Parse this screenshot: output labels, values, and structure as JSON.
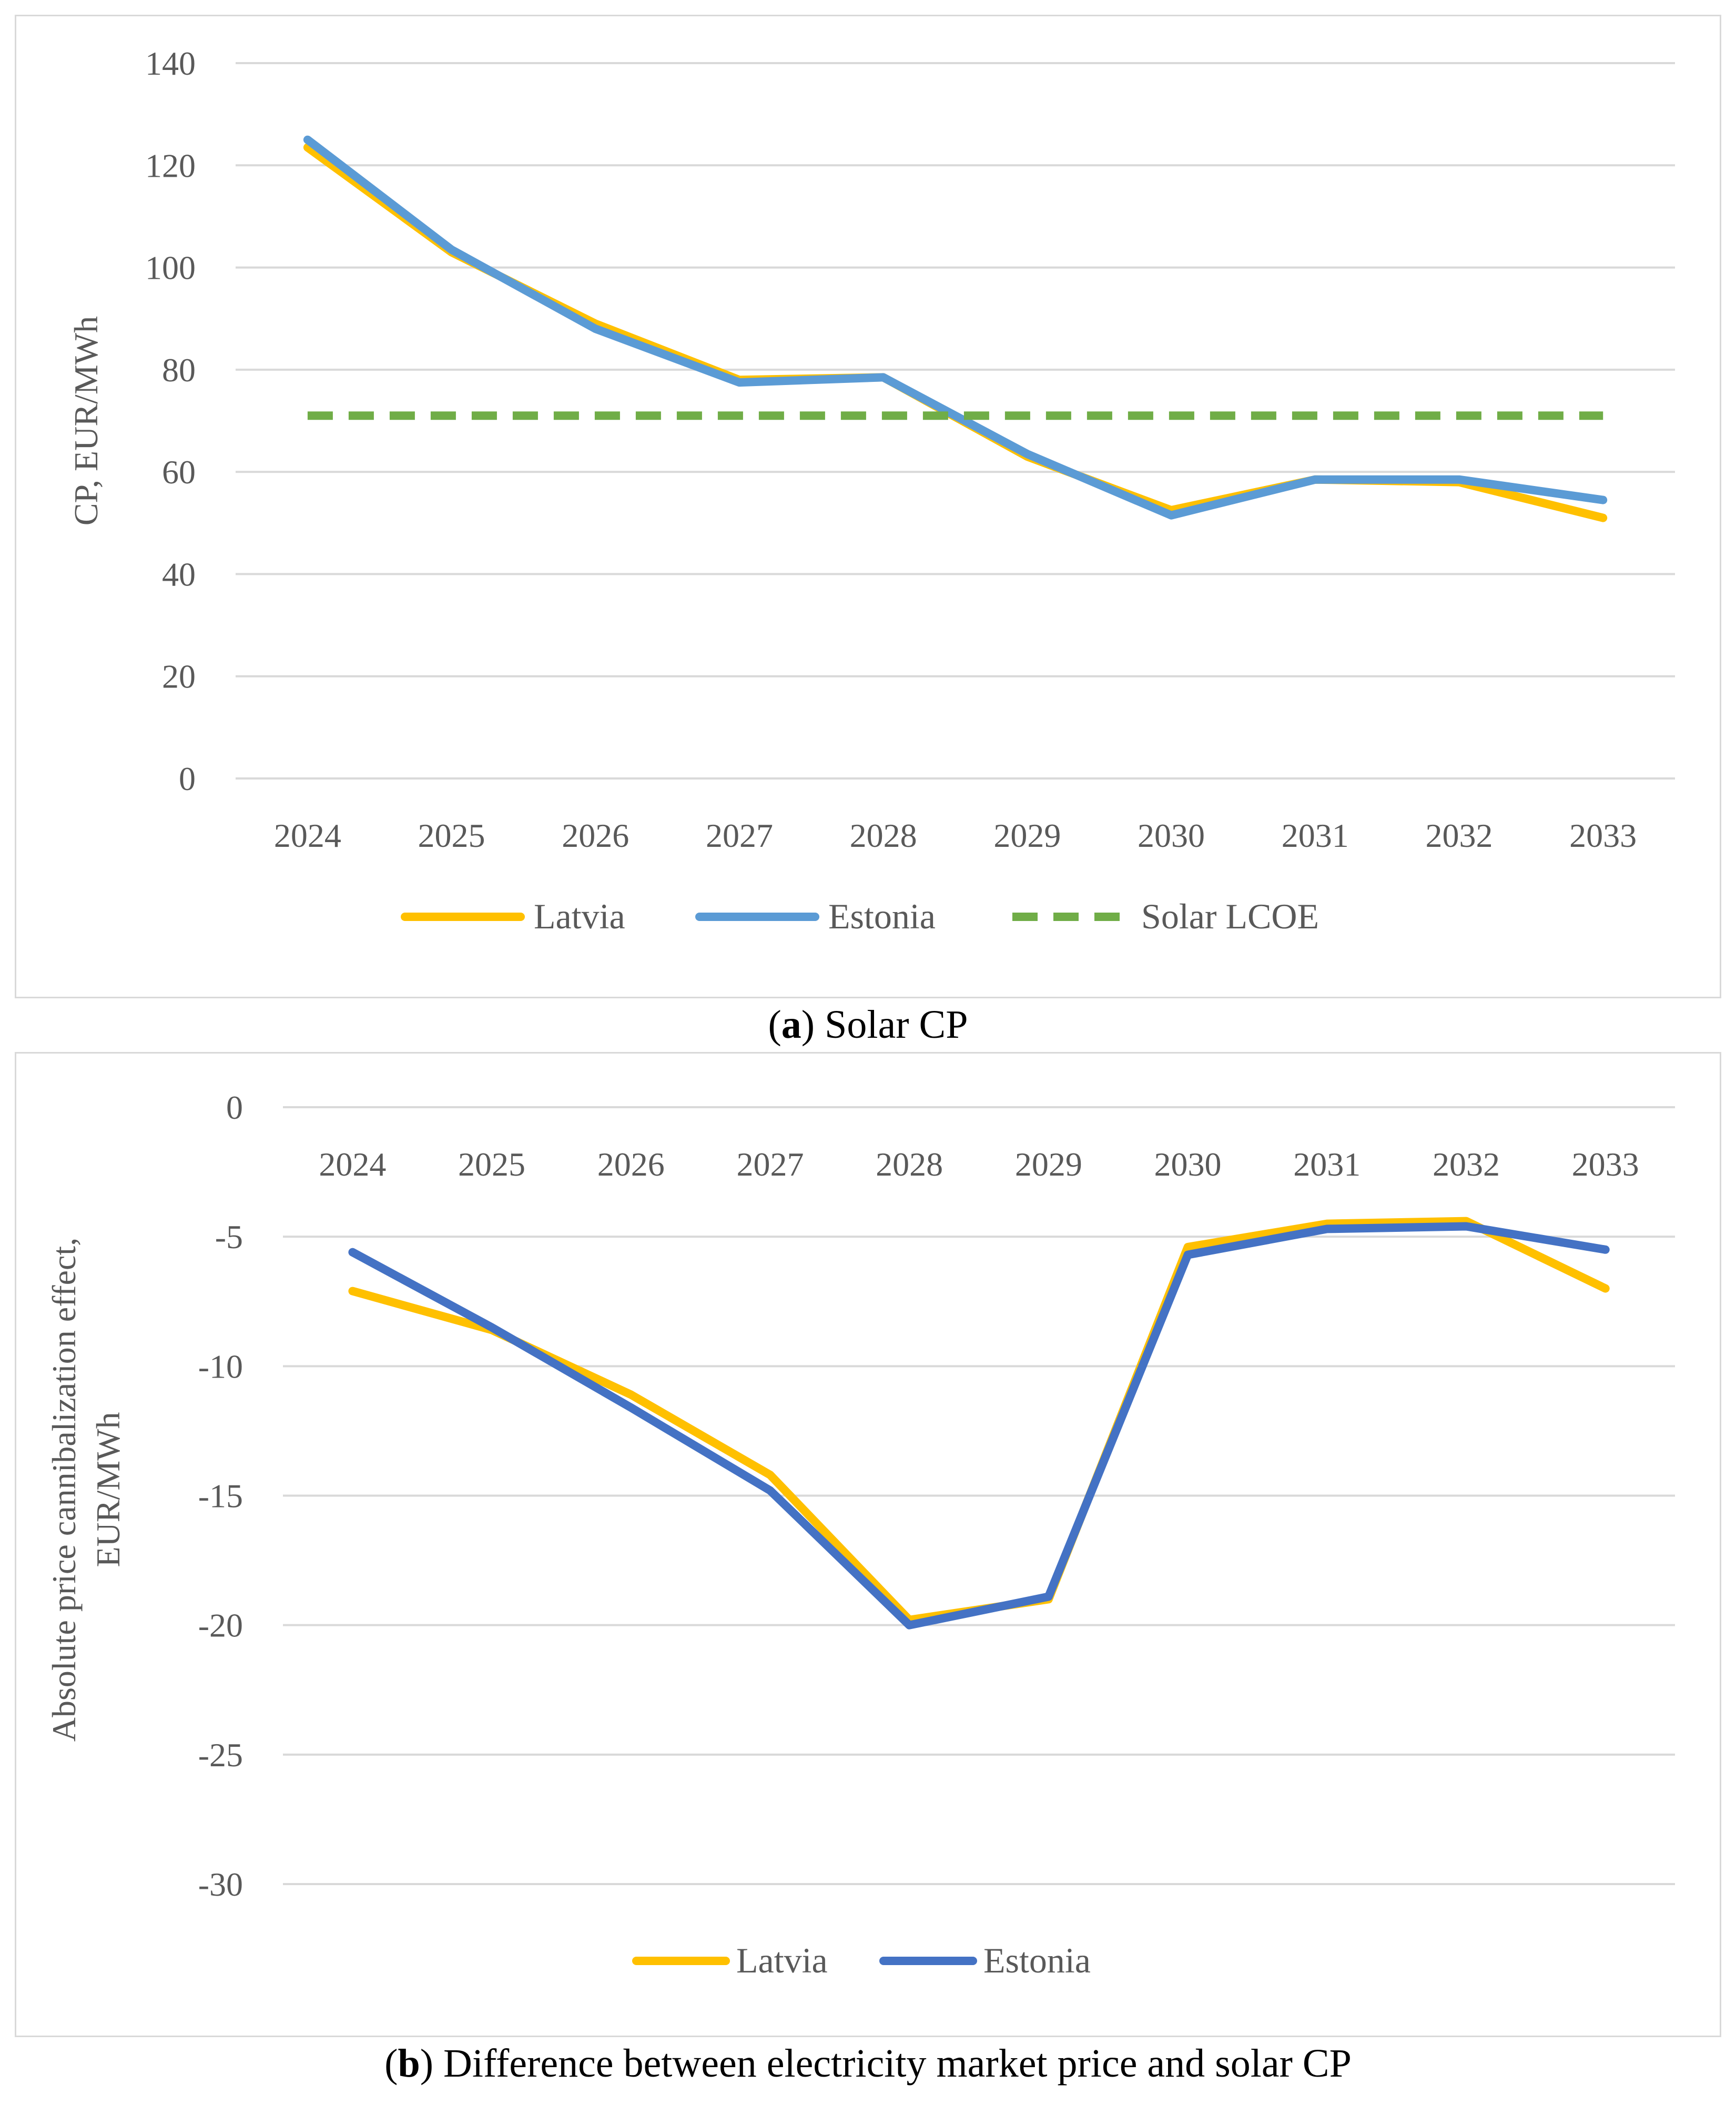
{
  "chart_data": [
    {
      "type": "line",
      "caption_label": "a",
      "caption_text": "Solar CP",
      "ylabel": "CP, EUR/MWh",
      "xlabel": "",
      "categories": [
        "2024",
        "2025",
        "2026",
        "2027",
        "2028",
        "2029",
        "2030",
        "2031",
        "2032",
        "2033"
      ],
      "ylim": [
        0,
        140
      ],
      "yticks": [
        0,
        20,
        40,
        60,
        80,
        100,
        120,
        140
      ],
      "grid": true,
      "legend_position": "bottom",
      "series": [
        {
          "name": "Latvia",
          "color": "#ffc000",
          "dash": false,
          "values": [
            123.5,
            103,
            89,
            78,
            78.5,
            63,
            52.5,
            58.5,
            58,
            51
          ]
        },
        {
          "name": "Estonia",
          "color": "#5b9bd5",
          "dash": false,
          "values": [
            125,
            103.5,
            88,
            77.5,
            78.5,
            63.5,
            51.5,
            58.5,
            58.5,
            54.5
          ]
        },
        {
          "name": "Solar LCOE",
          "color": "#70ad47",
          "dash": true,
          "values": [
            71,
            71,
            71,
            71,
            71,
            71,
            71,
            71,
            71,
            71
          ]
        }
      ]
    },
    {
      "type": "line",
      "caption_label": "b",
      "caption_text": "Difference between electricity market price and solar CP",
      "ylabel": "Absolute price cannibalization effect, EUR/MWh",
      "ylabel_lines": [
        "Absolute price cannibalization effect,",
        "EUR/MWh"
      ],
      "xlabel": "",
      "categories": [
        "2024",
        "2025",
        "2026",
        "2027",
        "2028",
        "2029",
        "2030",
        "2031",
        "2032",
        "2033"
      ],
      "ylim": [
        -30,
        0
      ],
      "yticks": [
        0,
        -5,
        -10,
        -15,
        -20,
        -25,
        -30
      ],
      "grid": true,
      "legend_position": "bottom",
      "series": [
        {
          "name": "Latvia",
          "color": "#ffc000",
          "dash": false,
          "values": [
            -7.1,
            -8.6,
            -11.1,
            -14.2,
            -19.8,
            -19.0,
            -5.4,
            -4.5,
            -4.4,
            -7.0
          ]
        },
        {
          "name": "Estonia",
          "color": "#4472c4",
          "dash": false,
          "values": [
            -5.6,
            -8.5,
            -11.6,
            -14.8,
            -20.0,
            -18.9,
            -5.7,
            -4.7,
            -4.6,
            -5.5
          ]
        }
      ]
    }
  ]
}
